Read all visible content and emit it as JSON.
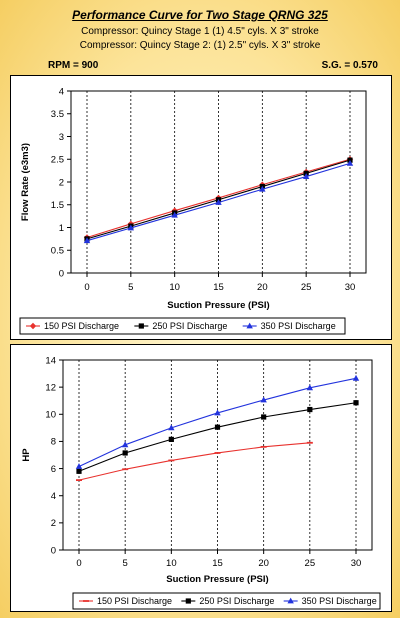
{
  "header": {
    "title": "Performance Curve for Two Stage QRNG 325",
    "line1": "Compressor: Quincy Stage 1 (1) 4.5\" cyls. X 3\" stroke",
    "line2": "Compressor: Quincy Stage 2: (1) 2.5\" cyls. X 3\" stroke",
    "rpm": "RPM = 900",
    "sg": "S.G. = 0.570"
  },
  "chart_data": [
    {
      "type": "line",
      "x": [
        0,
        5,
        10,
        15,
        20,
        25,
        30
      ],
      "xlabel": "Suction Pressure (PSI)",
      "ylabel": "Flow Rate (e3m3)",
      "xticks": [
        "0",
        "5",
        "10",
        "15",
        "20",
        "25",
        "30"
      ],
      "yticks": [
        "0",
        "0.5",
        "1",
        "1.5",
        "2",
        "2.5",
        "3",
        "3.5",
        "4"
      ],
      "ylim": [
        0,
        4
      ],
      "grid": "dashed vertical",
      "legend_position": "bottom",
      "series": [
        {
          "name": "150 PSI Discharge",
          "color": "#E8322E",
          "marker": "diamond",
          "values": [
            0.78,
            1.08,
            1.37,
            1.65,
            1.94,
            2.22,
            2.5
          ]
        },
        {
          "name": "250 PSI Discharge",
          "color": "#000000",
          "marker": "square",
          "values": [
            0.75,
            1.03,
            1.32,
            1.61,
            1.9,
            2.19,
            2.48
          ]
        },
        {
          "name": "350 PSI Discharge",
          "color": "#2233DD",
          "marker": "triangle",
          "values": [
            0.71,
            0.99,
            1.27,
            1.55,
            1.84,
            2.12,
            2.41
          ]
        }
      ]
    },
    {
      "type": "line",
      "x": [
        0,
        5,
        10,
        15,
        20,
        25,
        30
      ],
      "xlabel": "Suction Pressure (PSI)",
      "ylabel": "HP",
      "xticks": [
        "0",
        "5",
        "10",
        "15",
        "20",
        "25",
        "30"
      ],
      "yticks": [
        "0",
        "2",
        "4",
        "6",
        "8",
        "10",
        "12",
        "14"
      ],
      "ylim": [
        0,
        14
      ],
      "grid": "dashed vertical",
      "legend_position": "bottom",
      "series": [
        {
          "name": "150 PSI Discharge",
          "color": "#E8322E",
          "marker": "dash",
          "values": [
            5.15,
            5.95,
            6.6,
            7.15,
            7.6,
            7.9,
            null
          ]
        },
        {
          "name": "250 PSI Discharge",
          "color": "#000000",
          "marker": "square",
          "values": [
            5.8,
            7.15,
            8.15,
            9.05,
            9.8,
            10.35,
            10.85
          ]
        },
        {
          "name": "350 PSI Discharge",
          "color": "#2233DD",
          "marker": "triangle",
          "values": [
            6.15,
            7.75,
            9.0,
            10.1,
            11.05,
            11.95,
            12.65
          ]
        }
      ]
    }
  ]
}
